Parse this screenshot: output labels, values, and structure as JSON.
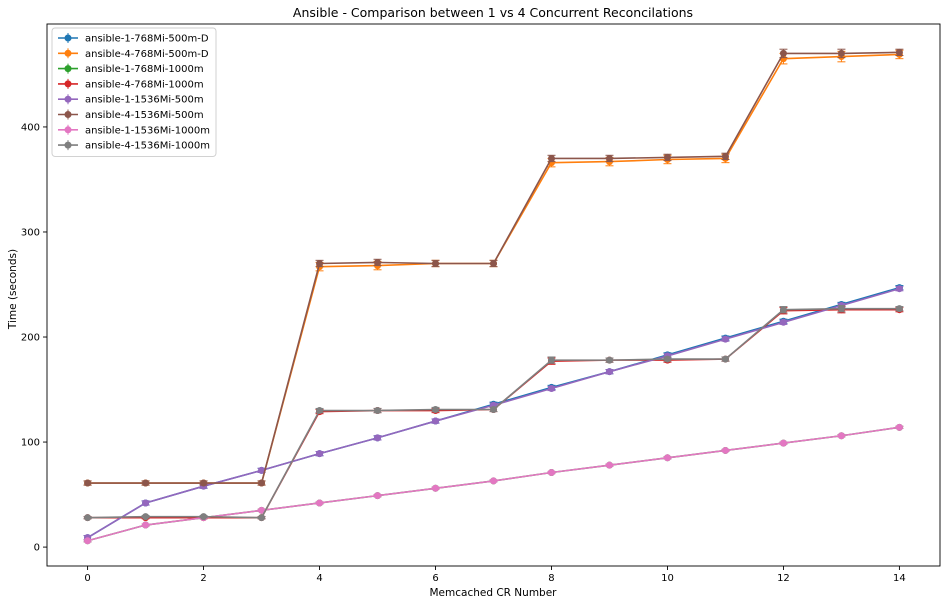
{
  "chart_data": {
    "type": "line",
    "title": "Ansible - Comparison between 1 vs 4 Concurrent Reconcilations",
    "xlabel": "Memcached CR Number",
    "ylabel": "Time (seconds)",
    "x": [
      0,
      1,
      2,
      3,
      4,
      5,
      6,
      7,
      8,
      9,
      10,
      11,
      12,
      13,
      14
    ],
    "xlim": [
      -0.7,
      14.7
    ],
    "ylim": [
      -18,
      498
    ],
    "xticks": [
      0,
      2,
      4,
      6,
      8,
      10,
      12,
      14
    ],
    "yticks": [
      0,
      100,
      200,
      300,
      400
    ],
    "grid": false,
    "legend_position": "top-left",
    "series": [
      {
        "name": "ansible-1-768Mi-500m-D",
        "color": "#1f77b4",
        "marker": "circle",
        "values": [
          9,
          42,
          58,
          73,
          89,
          104,
          120,
          136,
          152,
          167,
          183,
          199,
          215,
          231,
          247
        ],
        "errors": [
          2,
          2,
          2,
          2,
          2,
          2,
          2,
          2,
          2,
          2,
          2,
          2,
          2,
          2,
          2
        ]
      },
      {
        "name": "ansible-4-768Mi-500m-D",
        "color": "#ff7f0e",
        "marker": "circle",
        "values": [
          61,
          61,
          61,
          61,
          267,
          268,
          270,
          270,
          366,
          367,
          369,
          370,
          465,
          467,
          469
        ],
        "errors": [
          2,
          2,
          2,
          2,
          4,
          4,
          3,
          3,
          4,
          4,
          4,
          4,
          5,
          5,
          4
        ]
      },
      {
        "name": "ansible-1-768Mi-1000m",
        "color": "#2ca02c",
        "marker": "circle",
        "values": [
          6,
          21,
          28,
          35,
          42,
          49,
          56,
          63,
          71,
          78,
          85,
          92,
          99,
          106,
          114
        ],
        "errors": [
          1,
          1,
          1,
          1,
          1,
          1,
          1,
          1,
          1,
          1,
          1,
          1,
          1,
          1,
          1
        ]
      },
      {
        "name": "ansible-4-768Mi-1000m",
        "color": "#d62728",
        "marker": "circle",
        "values": [
          28,
          28,
          28,
          28,
          129,
          130,
          130,
          131,
          177,
          178,
          178,
          179,
          225,
          226,
          226
        ],
        "errors": [
          1,
          1,
          1,
          1,
          2,
          2,
          2,
          2,
          3,
          2,
          2,
          2,
          3,
          3,
          2
        ]
      },
      {
        "name": "ansible-1-1536Mi-500m",
        "color": "#9467bd",
        "marker": "circle",
        "values": [
          9,
          42,
          58,
          73,
          89,
          104,
          120,
          135,
          151,
          167,
          182,
          198,
          214,
          230,
          246
        ],
        "errors": [
          2,
          2,
          2,
          2,
          2,
          2,
          2,
          2,
          2,
          2,
          2,
          2,
          2,
          2,
          2
        ]
      },
      {
        "name": "ansible-4-1536Mi-500m",
        "color": "#8c564b",
        "marker": "circle",
        "values": [
          61,
          61,
          61,
          61,
          270,
          271,
          270,
          270,
          370,
          370,
          371,
          372,
          470,
          470,
          471
        ],
        "errors": [
          2,
          2,
          2,
          2,
          3,
          3,
          3,
          3,
          3,
          3,
          3,
          3,
          4,
          4,
          3
        ]
      },
      {
        "name": "ansible-1-1536Mi-1000m",
        "color": "#e377c2",
        "marker": "circle",
        "values": [
          6,
          21,
          28,
          35,
          42,
          49,
          56,
          63,
          71,
          78,
          85,
          92,
          99,
          106,
          114
        ],
        "errors": [
          1,
          1,
          1,
          1,
          1,
          1,
          1,
          1,
          1,
          1,
          1,
          1,
          1,
          1,
          1
        ]
      },
      {
        "name": "ansible-4-1536Mi-1000m",
        "color": "#7f7f7f",
        "marker": "circle",
        "values": [
          28,
          29,
          29,
          28,
          130,
          130,
          131,
          131,
          178,
          178,
          179,
          179,
          226,
          227,
          227
        ],
        "errors": [
          1,
          1,
          1,
          1,
          2,
          2,
          2,
          2,
          3,
          2,
          2,
          2,
          3,
          3,
          2
        ]
      }
    ]
  }
}
